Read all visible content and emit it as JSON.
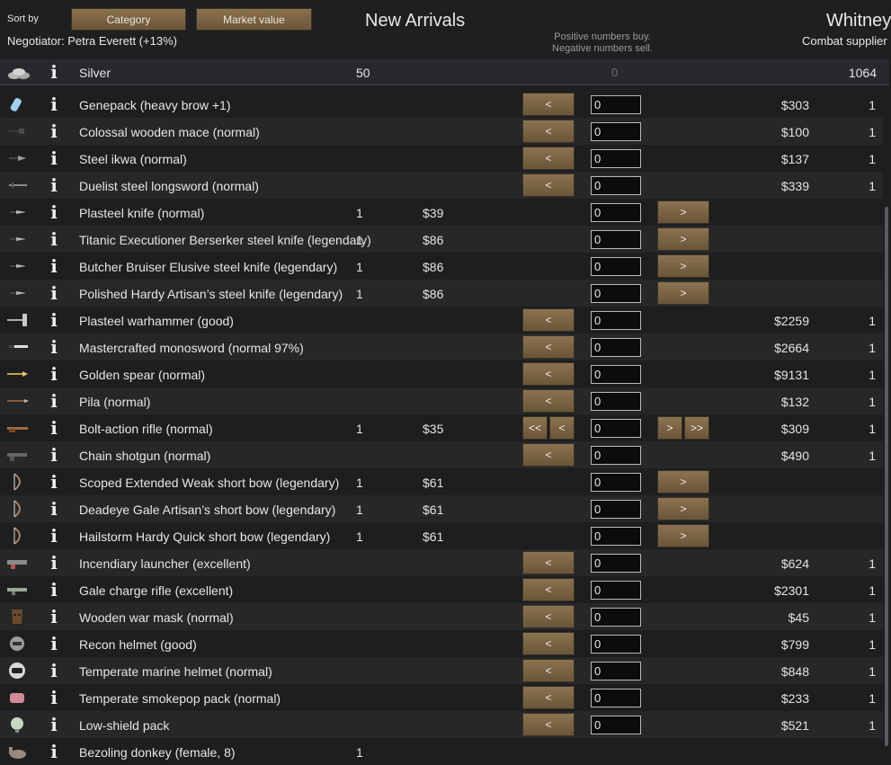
{
  "header": {
    "sort_label": "Sort by",
    "sort_buttons": [
      "Category",
      "Market value"
    ],
    "negotiator": "Negotiator: Petra Everett (+13%)",
    "colony_title": "New Arrivals",
    "hint_line1": "Positive numbers buy.",
    "hint_line2": "Negative numbers sell.",
    "trader_title": "Whitney",
    "trader_subtitle": "Combat supplier"
  },
  "silver": {
    "name": "Silver",
    "colony_qty": "50",
    "count": "0",
    "trader_qty": "1064"
  },
  "rows": [
    {
      "name": "Genepack (heavy brow +1)",
      "cqty": "",
      "cprice": "",
      "tprice": "$303",
      "tqty": "1",
      "icon": "genepack-icon",
      "mode": "buy",
      "qty": "0"
    },
    {
      "name": "Colossal wooden mace (normal)",
      "cqty": "",
      "cprice": "",
      "tprice": "$100",
      "tqty": "1",
      "icon": "mace-icon",
      "mode": "buy",
      "qty": "0"
    },
    {
      "name": "Steel ikwa (normal)",
      "cqty": "",
      "cprice": "",
      "tprice": "$137",
      "tqty": "1",
      "icon": "ikwa-icon",
      "mode": "buy",
      "qty": "0"
    },
    {
      "name": "Duelist steel longsword (normal)",
      "cqty": "",
      "cprice": "",
      "tprice": "$339",
      "tqty": "1",
      "icon": "longsword-icon",
      "mode": "buy",
      "qty": "0"
    },
    {
      "name": "Plasteel knife (normal)",
      "cqty": "1",
      "cprice": "$39",
      "tprice": "",
      "tqty": "",
      "icon": "knife-icon",
      "mode": "sell",
      "qty": "0"
    },
    {
      "name": "Titanic Executioner Berserker steel knife (legendary)",
      "cqty": "1",
      "cprice": "$86",
      "tprice": "",
      "tqty": "",
      "icon": "knife-icon",
      "mode": "sell",
      "qty": "0"
    },
    {
      "name": "Butcher Bruiser Elusive steel knife (legendary)",
      "cqty": "1",
      "cprice": "$86",
      "tprice": "",
      "tqty": "",
      "icon": "knife-icon",
      "mode": "sell",
      "qty": "0"
    },
    {
      "name": "Polished Hardy Artisan’s steel knife (legendary)",
      "cqty": "1",
      "cprice": "$86",
      "tprice": "",
      "tqty": "",
      "icon": "knife-icon",
      "mode": "sell",
      "qty": "0"
    },
    {
      "name": "Plasteel warhammer (good)",
      "cqty": "",
      "cprice": "",
      "tprice": "$2259",
      "tqty": "1",
      "icon": "warhammer-icon",
      "mode": "buy",
      "qty": "0"
    },
    {
      "name": "Mastercrafted monosword (normal 97%)",
      "cqty": "",
      "cprice": "",
      "tprice": "$2664",
      "tqty": "1",
      "icon": "monosword-icon",
      "mode": "buy",
      "qty": "0"
    },
    {
      "name": "Golden spear (normal)",
      "cqty": "",
      "cprice": "",
      "tprice": "$9131",
      "tqty": "1",
      "icon": "spear-icon",
      "mode": "buy",
      "qty": "0"
    },
    {
      "name": "Pila (normal)",
      "cqty": "",
      "cprice": "",
      "tprice": "$132",
      "tqty": "1",
      "icon": "pila-icon",
      "mode": "buy",
      "qty": "0"
    },
    {
      "name": "Bolt-action rifle (normal)",
      "cqty": "1",
      "cprice": "$35",
      "tprice": "$309",
      "tqty": "1",
      "icon": "rifle-icon",
      "mode": "both",
      "qty": "0"
    },
    {
      "name": "Chain shotgun (normal)",
      "cqty": "",
      "cprice": "",
      "tprice": "$490",
      "tqty": "1",
      "icon": "shotgun-icon",
      "mode": "buy",
      "qty": "0"
    },
    {
      "name": "Scoped Extended Weak short bow (legendary)",
      "cqty": "1",
      "cprice": "$61",
      "tprice": "",
      "tqty": "",
      "icon": "bow-icon",
      "mode": "sell",
      "qty": "0"
    },
    {
      "name": "Deadeye Gale Artisan’s short bow (legendary)",
      "cqty": "1",
      "cprice": "$61",
      "tprice": "",
      "tqty": "",
      "icon": "bow-icon",
      "mode": "sell",
      "qty": "0"
    },
    {
      "name": "Hailstorm Hardy Quick short bow (legendary)",
      "cqty": "1",
      "cprice": "$61",
      "tprice": "",
      "tqty": "",
      "icon": "bow-icon",
      "mode": "sell",
      "qty": "0"
    },
    {
      "name": "Incendiary launcher (excellent)",
      "cqty": "",
      "cprice": "",
      "tprice": "$624",
      "tqty": "1",
      "icon": "launcher-icon",
      "mode": "buy",
      "qty": "0"
    },
    {
      "name": "Gale charge rifle (excellent)",
      "cqty": "",
      "cprice": "",
      "tprice": "$2301",
      "tqty": "1",
      "icon": "charge-rifle-icon",
      "mode": "buy",
      "qty": "0"
    },
    {
      "name": "Wooden war mask (normal)",
      "cqty": "",
      "cprice": "",
      "tprice": "$45",
      "tqty": "1",
      "icon": "war-mask-icon",
      "mode": "buy",
      "qty": "0"
    },
    {
      "name": "Recon helmet (good)",
      "cqty": "",
      "cprice": "",
      "tprice": "$799",
      "tqty": "1",
      "icon": "helmet-icon",
      "mode": "buy",
      "qty": "0"
    },
    {
      "name": "Temperate marine helmet (normal)",
      "cqty": "",
      "cprice": "",
      "tprice": "$848",
      "tqty": "1",
      "icon": "marine-helmet-icon",
      "mode": "buy",
      "qty": "0"
    },
    {
      "name": "Temperate smokepop pack (normal)",
      "cqty": "",
      "cprice": "",
      "tprice": "$233",
      "tqty": "1",
      "icon": "smokepop-pack-icon",
      "mode": "buy",
      "qty": "0"
    },
    {
      "name": "Low-shield pack",
      "cqty": "",
      "cprice": "",
      "tprice": "$521",
      "tqty": "1",
      "icon": "shield-pack-icon",
      "mode": "buy",
      "qty": "0"
    },
    {
      "name": "Bezoling donkey (female, 8)",
      "cqty": "1",
      "cprice": "",
      "tprice": "",
      "tqty": "",
      "icon": "donkey-icon",
      "mode": "none",
      "qty": ""
    }
  ],
  "buttons": {
    "buy_one": "<",
    "buy_all": "<<",
    "sell_one": ">",
    "sell_all": ">>"
  },
  "colors": {
    "button": "#7a6445",
    "row_alt": "#252729",
    "background": "#1d1e20"
  }
}
